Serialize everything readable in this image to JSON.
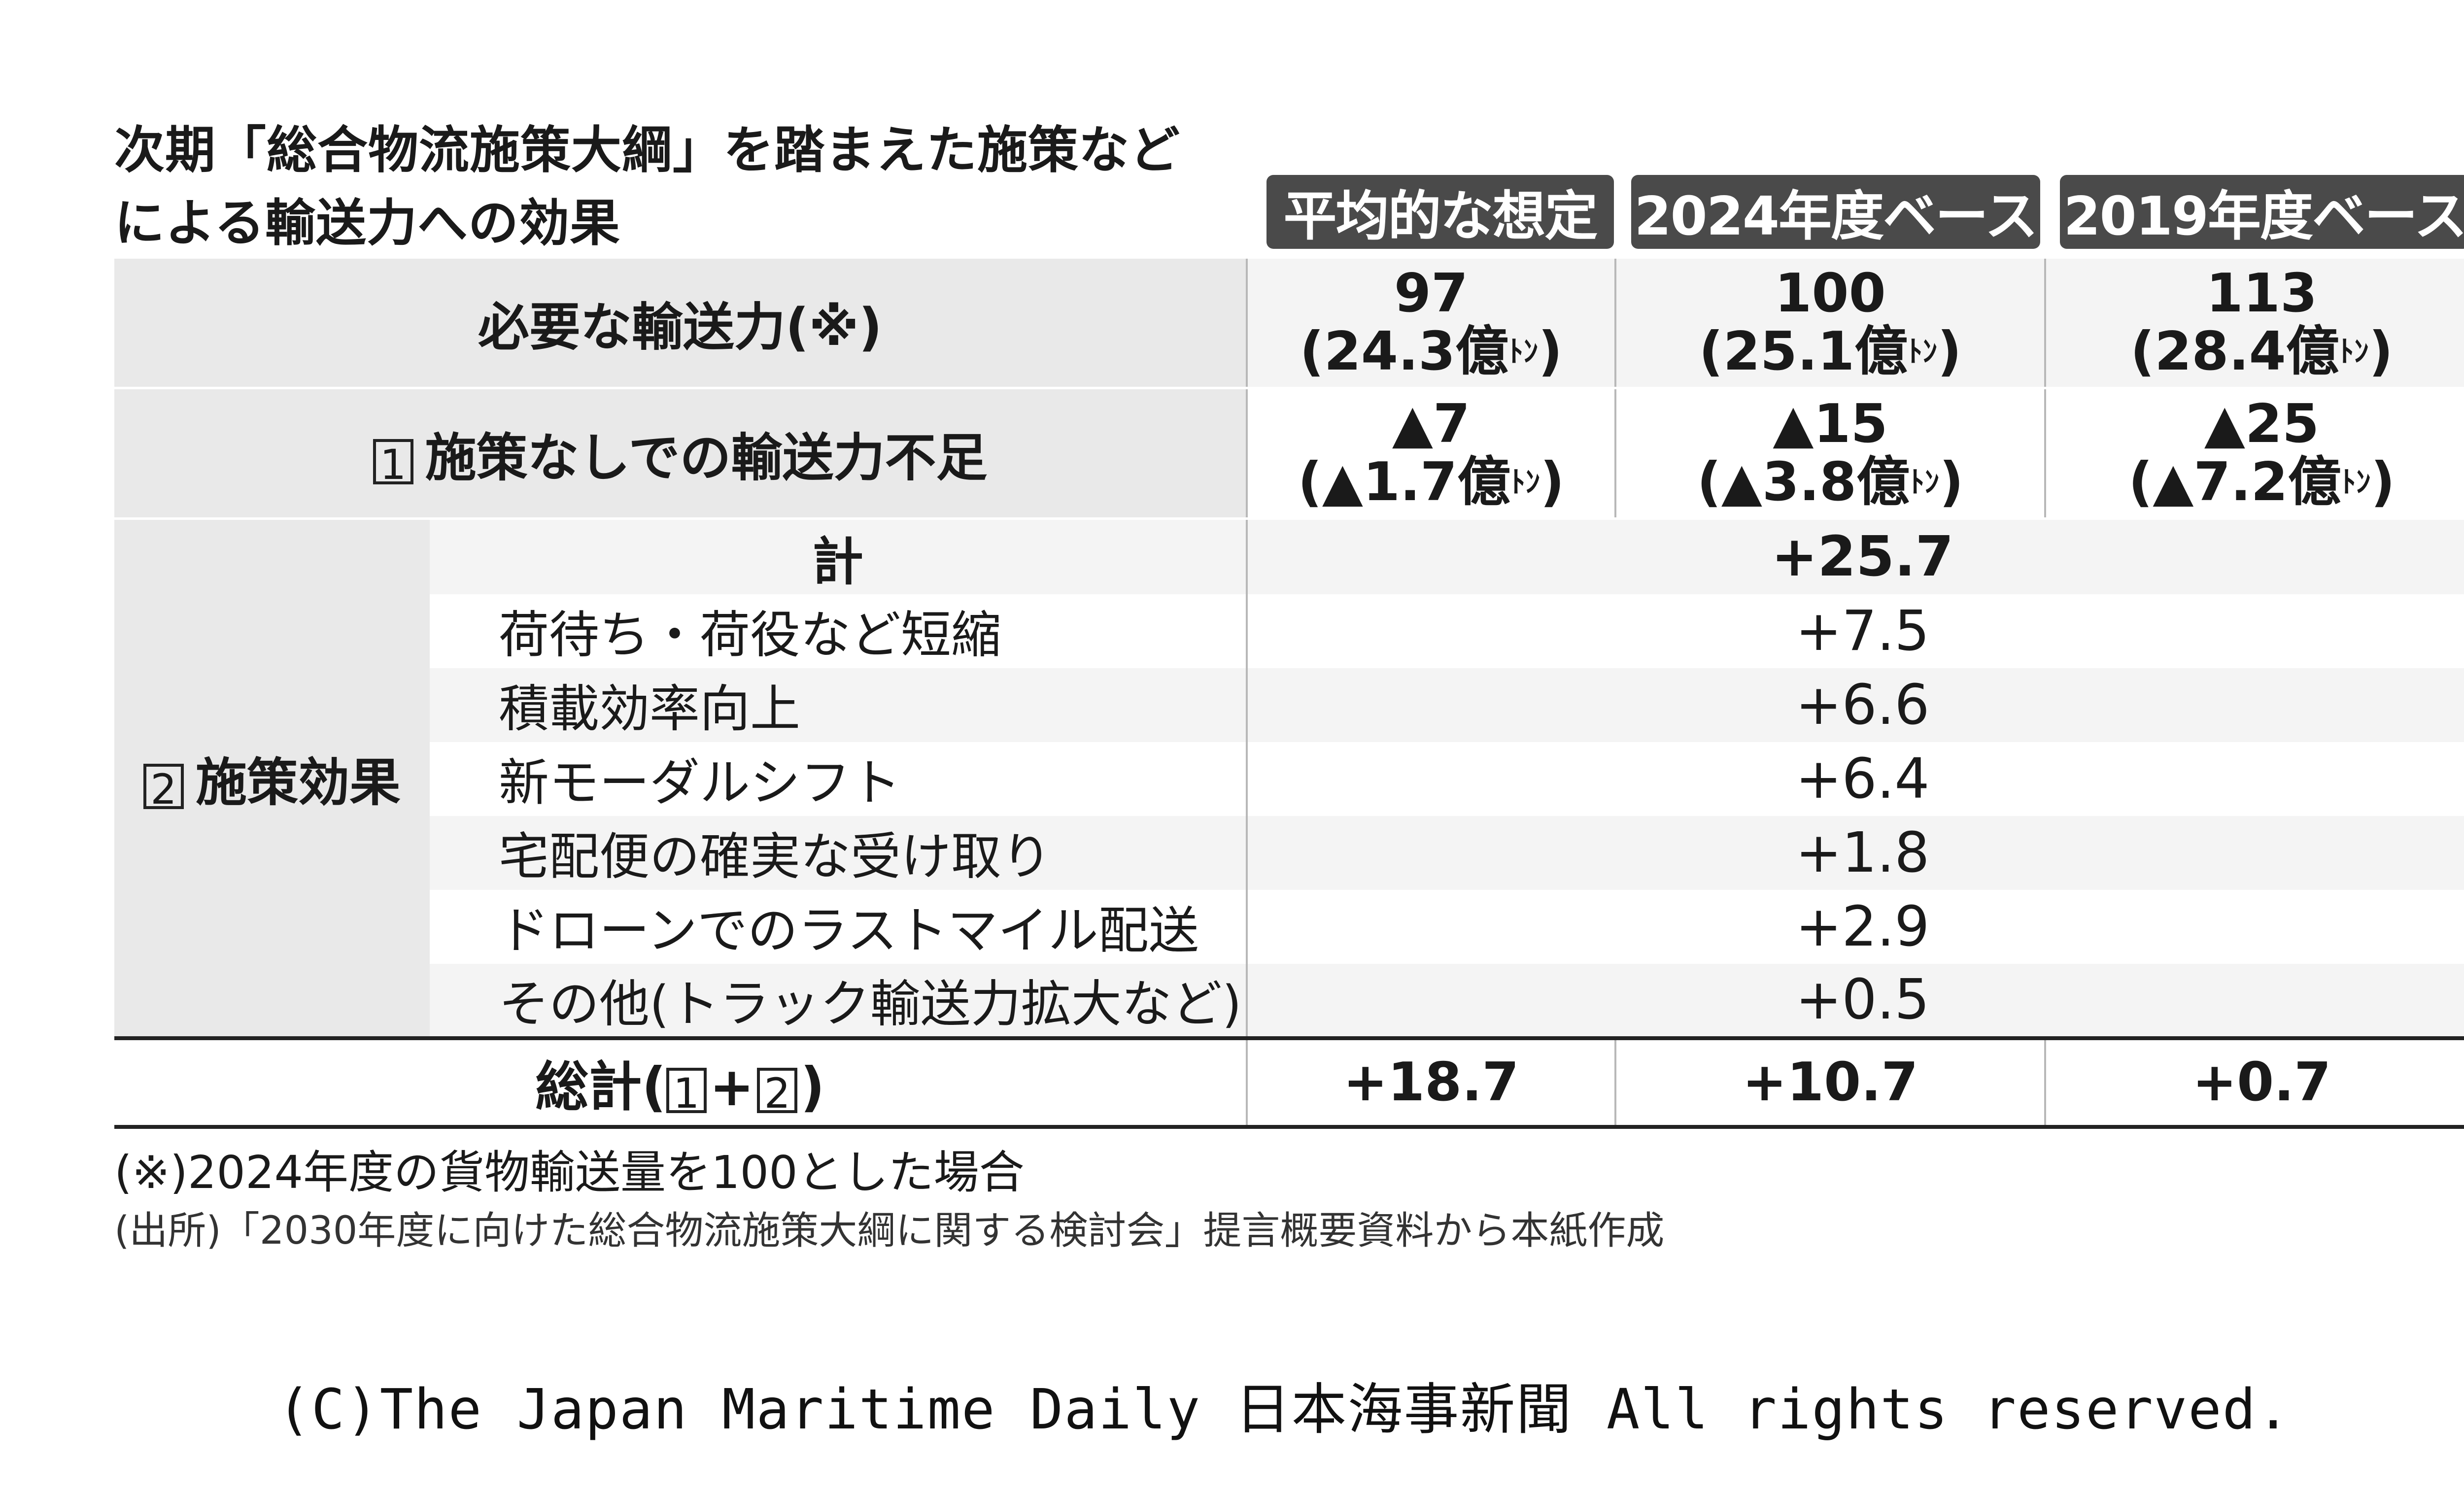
{
  "title": {
    "line1": "次期「総合物流施策大綱」を踏まえた施策など",
    "line2": "による輸送力への効果"
  },
  "chart_data": {
    "type": "table",
    "columns": [
      "平均的な想定",
      "2024年度ベース",
      "2019年度ベース"
    ],
    "required": {
      "label": "必要な輸送力(※)",
      "values": [
        "97",
        "100",
        "113"
      ],
      "tons": [
        "(24.3億",
        "(25.1億",
        "(28.4億"
      ]
    },
    "shortage": {
      "num": "1",
      "label": "施策なしでの輸送力不足",
      "values": [
        "▲7",
        "▲15",
        "▲25"
      ],
      "tons": [
        "(▲1.7億",
        "(▲3.8億",
        "(▲7.2億"
      ]
    },
    "ton_unit": "ﾄﾝ",
    "ton_close": ")",
    "effect": {
      "num": "2",
      "label": "施策効果",
      "total_label": "計",
      "total_value": "+25.7",
      "items": [
        {
          "label": "荷待ち・荷役など短縮",
          "value": "+7.5"
        },
        {
          "label": "積載効率向上",
          "value": "+6.6"
        },
        {
          "label": "新モーダルシフト",
          "value": "+6.4"
        },
        {
          "label": "宅配便の確実な受け取り",
          "value": "+1.8"
        },
        {
          "label": "ドローンでのラストマイル配送",
          "value": "+2.9"
        },
        {
          "label": "その他(トラック輸送力拡大など)",
          "value": "+0.5"
        }
      ]
    },
    "grand_total": {
      "label_pre": "総計(",
      "num1": "1",
      "plus": "+",
      "num2": "2",
      "label_post": ")",
      "values": [
        "+18.7",
        "+10.7",
        "+0.7"
      ]
    }
  },
  "notes": {
    "note1": "(※)2024年度の貨物輸送量を100とした場合",
    "note2": "(出所)「2030年度に向けた総合物流施策大綱に関する検討会」提言概要資料から本紙作成"
  },
  "copyright": "(C)The Japan Maritime Daily 日本海事新聞 All rights reserved."
}
